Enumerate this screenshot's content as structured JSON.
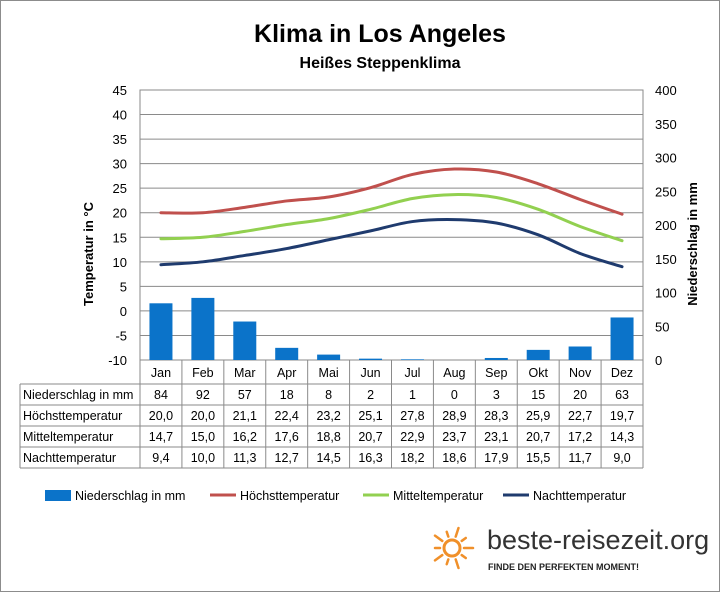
{
  "chart_data": {
    "type": "bar+line",
    "title": "Klima in Los Angeles",
    "subtitle": "Heißes Steppenklima",
    "categories": [
      "Jan",
      "Feb",
      "Mar",
      "Apr",
      "Mai",
      "Jun",
      "Jul",
      "Aug",
      "Sep",
      "Okt",
      "Nov",
      "Dez"
    ],
    "y_left": {
      "label": "Temperatur in °C",
      "min": -10,
      "max": 45,
      "ticks": [
        45,
        40,
        35,
        30,
        25,
        20,
        15,
        10,
        5,
        0,
        -5,
        -10
      ]
    },
    "y_right": {
      "label": "Niederschlag in mm",
      "min": 0,
      "max": 400,
      "ticks": [
        400,
        350,
        300,
        250,
        200,
        150,
        100,
        50,
        0
      ]
    },
    "bar_series": {
      "name": "Niederschlag in mm",
      "axis": "right",
      "color": "#0b73c9",
      "values": [
        84,
        92,
        57,
        18,
        8,
        2,
        1,
        0,
        3,
        15,
        20,
        63
      ]
    },
    "line_series": [
      {
        "name": "Höchsttemperatur",
        "color": "#c0504d",
        "values": [
          20.0,
          20.0,
          21.1,
          22.4,
          23.2,
          25.1,
          27.8,
          28.9,
          28.3,
          25.9,
          22.7,
          19.7
        ]
      },
      {
        "name": "Mitteltemperatur",
        "color": "#92d050",
        "values": [
          14.7,
          15.0,
          16.2,
          17.6,
          18.8,
          20.7,
          22.9,
          23.7,
          23.1,
          20.7,
          17.2,
          14.3
        ]
      },
      {
        "name": "Nachttemperatur",
        "color": "#1f3b6e",
        "values": [
          9.4,
          10.0,
          11.3,
          12.7,
          14.5,
          16.3,
          18.2,
          18.6,
          17.9,
          15.5,
          11.7,
          9.0
        ]
      }
    ],
    "table": {
      "rows": [
        {
          "label": "Niederschlag in mm",
          "cells": [
            "84",
            "92",
            "57",
            "18",
            "8",
            "2",
            "1",
            "0",
            "3",
            "15",
            "20",
            "63"
          ]
        },
        {
          "label": "Höchsttemperatur",
          "cells": [
            "20,0",
            "20,0",
            "21,1",
            "22,4",
            "23,2",
            "25,1",
            "27,8",
            "28,9",
            "28,3",
            "25,9",
            "22,7",
            "19,7"
          ]
        },
        {
          "label": "Mitteltemperatur",
          "cells": [
            "14,7",
            "15,0",
            "16,2",
            "17,6",
            "18,8",
            "20,7",
            "22,9",
            "23,7",
            "23,1",
            "20,7",
            "17,2",
            "14,3"
          ]
        },
        {
          "label": "Nachttemperatur",
          "cells": [
            "9,4",
            "10,0",
            "11,3",
            "12,7",
            "14,5",
            "16,3",
            "18,2",
            "18,6",
            "17,9",
            "15,5",
            "11,7",
            "9,0"
          ]
        }
      ]
    },
    "legend": [
      "Niederschlag in mm",
      "Höchsttemperatur",
      "Mitteltemperatur",
      "Nachttemperatur"
    ],
    "grid": true
  },
  "branding": {
    "name": "beste-reisezeit.org",
    "slogan": "FINDE DEN PERFEKTEN MOMENT!",
    "icon": "sun-icon",
    "icon_color": "#f0902a"
  }
}
